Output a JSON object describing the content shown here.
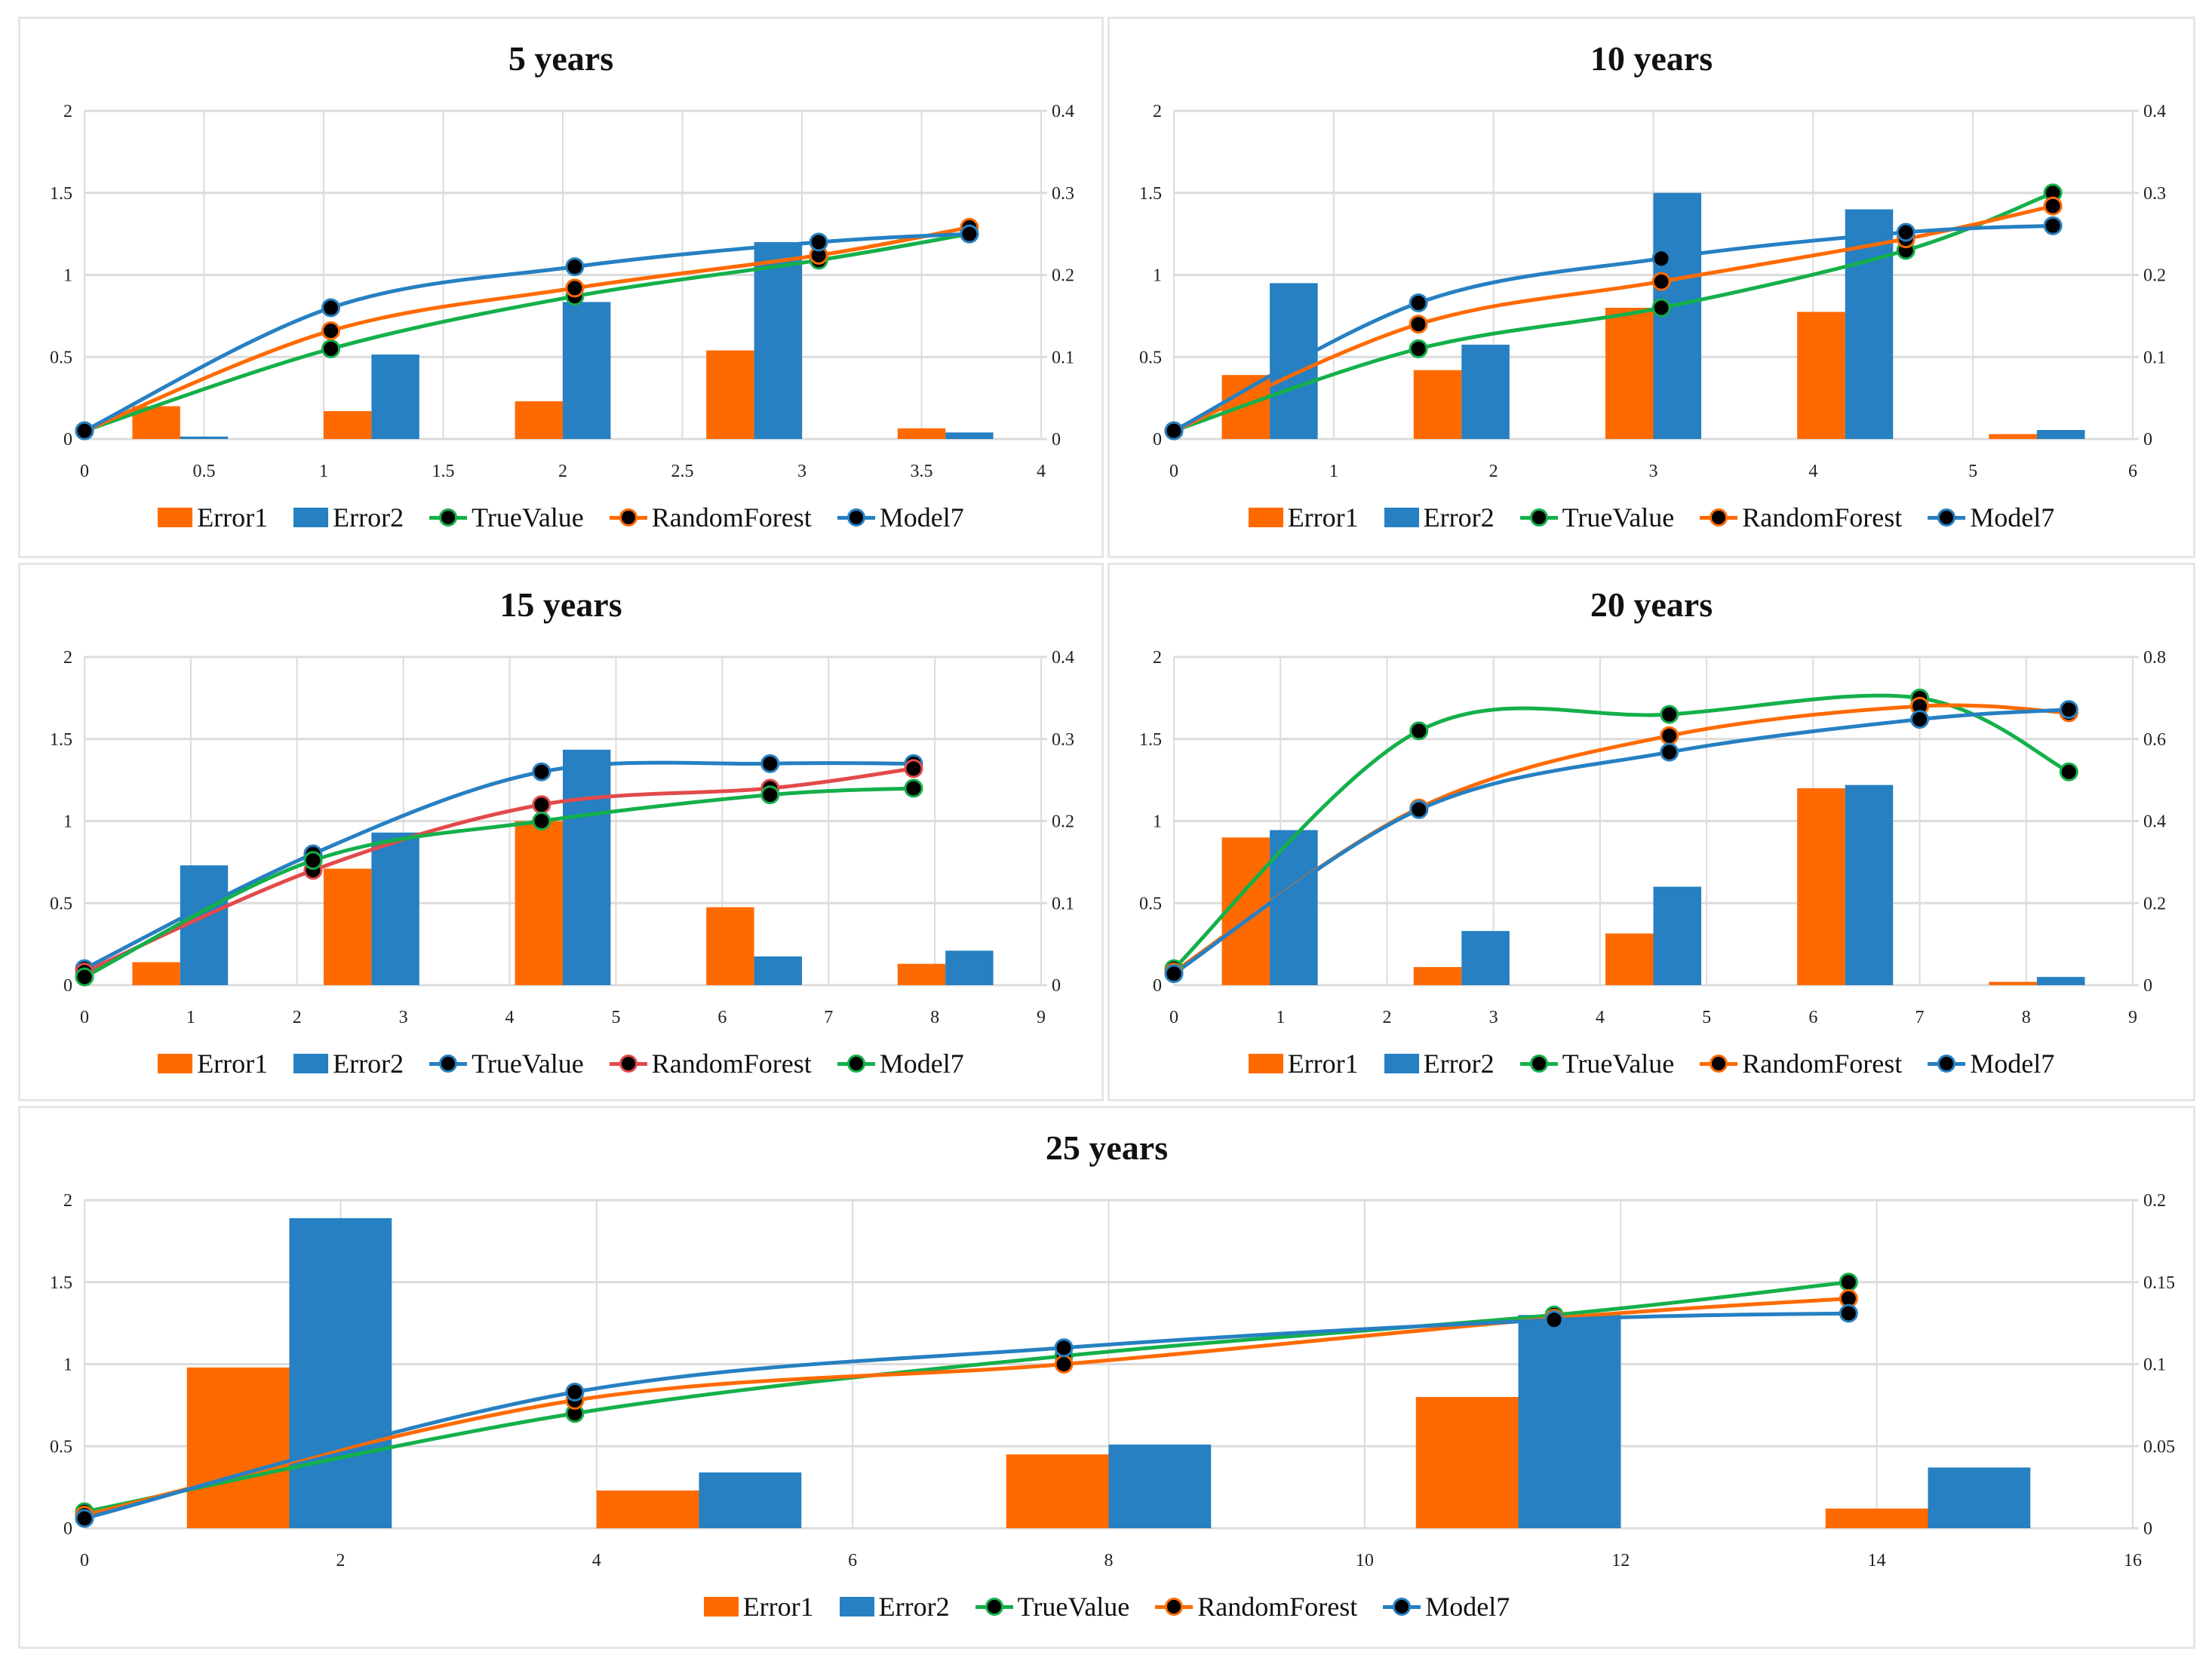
{
  "colors": {
    "orange": "#ff6a00",
    "blue": "#2680c2",
    "green": "#14b04a",
    "red": "#e24a4a",
    "grid": "#dcdcdc"
  },
  "chart_data": [
    {
      "type": "combo",
      "title": "5 years",
      "xlabel": "",
      "ylabel": "",
      "legend_placement": "bottom",
      "grid": true,
      "xlim": [
        0,
        4
      ],
      "ylim": [
        0,
        2
      ],
      "y2lim": [
        0,
        0.4
      ],
      "xticks": [
        "0",
        "0.5",
        "1",
        "1.5",
        "2",
        "2.5",
        "3",
        "3.5",
        "4"
      ],
      "yticks": [
        "0",
        "0.5",
        "1",
        "1.5",
        "2"
      ],
      "y2ticks": [
        "0",
        "0.1",
        "0.2",
        "0.3",
        "0.4"
      ],
      "bar_series": [
        {
          "name": "Error1",
          "color": "#ff6a00",
          "values": [
            0.04,
            0.034,
            0.046,
            0.108,
            0.013
          ]
        },
        {
          "name": "Error2",
          "color": "#2680c2",
          "values": [
            0.003,
            0.103,
            0.167,
            0.24,
            0.008
          ]
        }
      ],
      "line_series": [
        {
          "name": "TrueValue",
          "color": "#14b04a",
          "x": [
            0,
            1.03,
            2.05,
            3.07,
            3.7
          ],
          "y": [
            0.05,
            0.55,
            0.87,
            1.09,
            1.25
          ]
        },
        {
          "name": "RandomForest",
          "color": "#ff6a00",
          "x": [
            0,
            1.03,
            2.05,
            3.07,
            3.7
          ],
          "y": [
            0.05,
            0.66,
            0.92,
            1.12,
            1.29
          ]
        },
        {
          "name": "Model7",
          "color": "#2680c2",
          "x": [
            0,
            1.03,
            2.05,
            3.07,
            3.7
          ],
          "y": [
            0.05,
            0.8,
            1.05,
            1.2,
            1.25
          ]
        }
      ]
    },
    {
      "type": "combo",
      "title": "10 years",
      "xlabel": "",
      "ylabel": "",
      "legend_placement": "bottom",
      "grid": true,
      "xlim": [
        0,
        6
      ],
      "ylim": [
        0,
        2
      ],
      "y2lim": [
        0,
        0.4
      ],
      "xticks": [
        "0",
        "1",
        "2",
        "3",
        "4",
        "5",
        "6"
      ],
      "yticks": [
        "0",
        "0.5",
        "1",
        "1.5",
        "2"
      ],
      "y2ticks": [
        "0",
        "0.1",
        "0.2",
        "0.3",
        "0.4"
      ],
      "bar_series": [
        {
          "name": "Error1",
          "color": "#ff6a00",
          "values": [
            0.078,
            0.084,
            0.16,
            0.155,
            0.006
          ]
        },
        {
          "name": "Error2",
          "color": "#2680c2",
          "values": [
            0.19,
            0.115,
            0.3,
            0.28,
            0.011
          ]
        }
      ],
      "line_series": [
        {
          "name": "TrueValue",
          "color": "#14b04a",
          "x": [
            0,
            1.53,
            3.05,
            4.58,
            5.5
          ],
          "y": [
            0.05,
            0.55,
            0.8,
            1.15,
            1.5
          ]
        },
        {
          "name": "RandomForest",
          "color": "#ff6a00",
          "x": [
            0,
            1.53,
            3.05,
            4.58,
            5.5
          ],
          "y": [
            0.05,
            0.7,
            0.96,
            1.22,
            1.42
          ]
        },
        {
          "name": "Model7",
          "color": "#2680c2",
          "x": [
            0,
            1.53,
            3.05,
            4.58,
            5.5
          ],
          "y": [
            0.05,
            0.83,
            1.1,
            1.26,
            1.3
          ]
        }
      ]
    },
    {
      "type": "combo",
      "title": "15 years",
      "xlabel": "",
      "ylabel": "",
      "legend_placement": "bottom",
      "grid": true,
      "xlim": [
        0,
        9
      ],
      "ylim": [
        0,
        2
      ],
      "y2lim": [
        0,
        0.4
      ],
      "xticks": [
        "0",
        "1",
        "2",
        "3",
        "4",
        "5",
        "6",
        "7",
        "8",
        "9"
      ],
      "yticks": [
        "0",
        "0.5",
        "1",
        "1.5",
        "2"
      ],
      "y2ticks": [
        "0",
        "0.1",
        "0.2",
        "0.3",
        "0.4"
      ],
      "bar_series": [
        {
          "name": "Error1",
          "color": "#ff6a00",
          "values": [
            0.028,
            0.142,
            0.2,
            0.095,
            0.026
          ]
        },
        {
          "name": "Error2",
          "color": "#2680c2",
          "values": [
            0.146,
            0.186,
            0.287,
            0.035,
            0.042
          ]
        }
      ],
      "line_series": [
        {
          "name": "TrueValue",
          "color": "#2680c2",
          "x": [
            0,
            2.15,
            4.3,
            6.45,
            7.8
          ],
          "y": [
            0.1,
            0.8,
            1.3,
            1.35,
            1.35
          ]
        },
        {
          "name": "RandomForest",
          "color": "#e24a4a",
          "x": [
            0,
            2.15,
            4.3,
            6.45,
            7.8
          ],
          "y": [
            0.08,
            0.7,
            1.1,
            1.2,
            1.32
          ]
        },
        {
          "name": "Model7",
          "color": "#14b04a",
          "x": [
            0,
            2.15,
            4.3,
            6.45,
            7.8
          ],
          "y": [
            0.05,
            0.76,
            1.0,
            1.16,
            1.2
          ]
        }
      ]
    },
    {
      "type": "combo",
      "title": "20 years",
      "xlabel": "",
      "ylabel": "",
      "legend_placement": "bottom",
      "grid": true,
      "xlim": [
        0,
        9
      ],
      "ylim": [
        0,
        2
      ],
      "y2lim": [
        0,
        0.8
      ],
      "xticks": [
        "0",
        "1",
        "2",
        "3",
        "4",
        "5",
        "6",
        "7",
        "8",
        "9"
      ],
      "yticks": [
        "0",
        "0.5",
        "1",
        "1.5",
        "2"
      ],
      "y2ticks": [
        "0",
        "0.2",
        "0.4",
        "0.6",
        "0.8"
      ],
      "bar_series": [
        {
          "name": "Error1",
          "color": "#ff6a00",
          "values": [
            0.36,
            0.044,
            0.126,
            0.48,
            0.008
          ]
        },
        {
          "name": "Error2",
          "color": "#2680c2",
          "values": [
            0.378,
            0.132,
            0.24,
            0.488,
            0.02
          ]
        }
      ],
      "line_series": [
        {
          "name": "TrueValue",
          "color": "#14b04a",
          "x": [
            0,
            2.3,
            4.65,
            7.0,
            8.4
          ],
          "y": [
            0.1,
            1.55,
            1.65,
            1.75,
            1.3
          ]
        },
        {
          "name": "RandomForest",
          "color": "#ff6a00",
          "x": [
            0,
            2.3,
            4.65,
            7.0,
            8.4
          ],
          "y": [
            0.08,
            1.08,
            1.52,
            1.7,
            1.66
          ]
        },
        {
          "name": "Model7",
          "color": "#2680c2",
          "x": [
            0,
            2.3,
            4.65,
            7.0,
            8.4
          ],
          "y": [
            0.07,
            1.07,
            1.42,
            1.62,
            1.68
          ]
        }
      ]
    },
    {
      "type": "combo",
      "title": "25 years",
      "xlabel": "",
      "ylabel": "",
      "legend_placement": "bottom",
      "grid": true,
      "xlim": [
        0,
        16
      ],
      "ylim": [
        0,
        2
      ],
      "y2lim": [
        0,
        0.2
      ],
      "xticks": [
        "0",
        "2",
        "4",
        "6",
        "8",
        "10",
        "12",
        "14",
        "16"
      ],
      "yticks": [
        "0",
        "0.5",
        "1",
        "1.5",
        "2"
      ],
      "y2ticks": [
        "0",
        "0.05",
        "0.1",
        "0.15",
        "0.2"
      ],
      "bar_series": [
        {
          "name": "Error1",
          "color": "#ff6a00",
          "values": [
            0.098,
            0.023,
            0.045,
            0.08,
            0.012
          ]
        },
        {
          "name": "Error2",
          "color": "#2680c2",
          "values": [
            0.189,
            0.034,
            0.051,
            0.13,
            0.037
          ]
        }
      ],
      "line_series": [
        {
          "name": "TrueValue",
          "color": "#14b04a",
          "x": [
            0,
            3.83,
            7.65,
            11.48,
            13.78
          ],
          "y": [
            0.1,
            0.7,
            1.05,
            1.3,
            1.5
          ]
        },
        {
          "name": "RandomForest",
          "color": "#ff6a00",
          "x": [
            0,
            3.83,
            7.65,
            11.48,
            13.78
          ],
          "y": [
            0.08,
            0.78,
            1.0,
            1.28,
            1.4
          ]
        },
        {
          "name": "Model7",
          "color": "#2680c2",
          "x": [
            0,
            3.83,
            7.65,
            11.48,
            13.78
          ],
          "y": [
            0.06,
            0.83,
            1.1,
            1.27,
            1.31
          ]
        }
      ]
    }
  ]
}
